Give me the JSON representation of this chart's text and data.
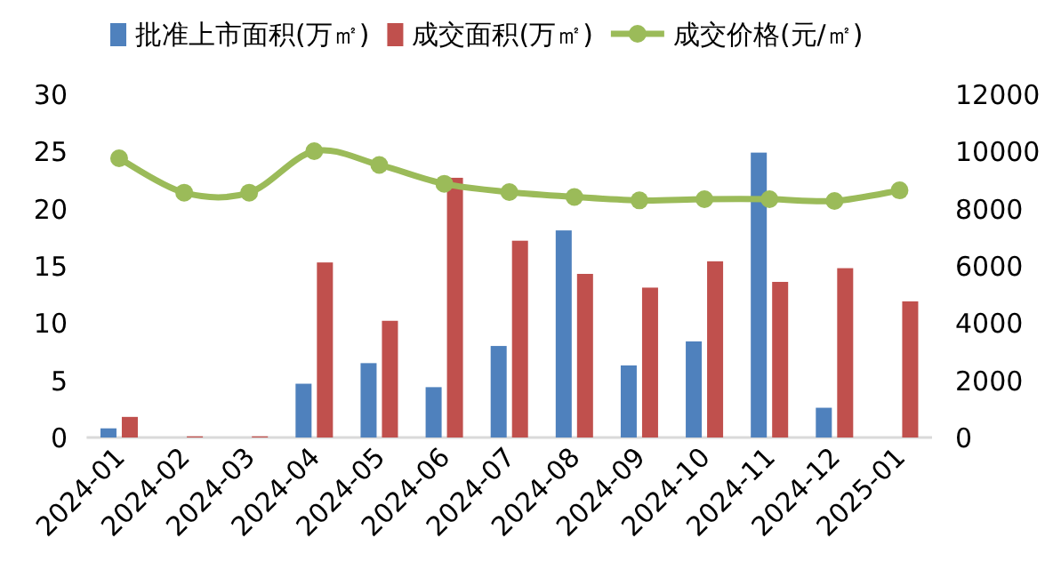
{
  "chart_data": {
    "type": "bar",
    "categories": [
      "2024-01",
      "2024-02",
      "2024-03",
      "2024-04",
      "2024-05",
      "2024-06",
      "2024-07",
      "2024-08",
      "2024-09",
      "2024-10",
      "2024-11",
      "2024-12",
      "2025-01"
    ],
    "series": [
      {
        "name": "批准上市面积(万㎡)",
        "color": "#4f81bd",
        "values": [
          0.8,
          0,
          0,
          4.7,
          6.5,
          4.4,
          8.0,
          18.1,
          6.3,
          8.4,
          24.9,
          2.6,
          null
        ]
      },
      {
        "name": "成交面积(万㎡)",
        "color": "#c0504d",
        "values": [
          1.8,
          0.1,
          0.1,
          15.3,
          10.2,
          22.7,
          17.2,
          14.3,
          13.1,
          15.4,
          13.6,
          14.8,
          11.9
        ]
      },
      {
        "name": "成交价格(元/㎡)",
        "type": "line",
        "axis": "y2",
        "color": "#9bbb59",
        "values": [
          9760,
          8560,
          8560,
          10010,
          9530,
          8870,
          8580,
          8410,
          8290,
          8330,
          8330,
          8270,
          8640
        ]
      }
    ],
    "ylim": [
      0,
      30
    ],
    "yticks": [
      0,
      5,
      10,
      15,
      20,
      25,
      30
    ],
    "y2lim": [
      0,
      12000
    ],
    "y2ticks": [
      0,
      2000,
      4000,
      6000,
      8000,
      10000,
      12000
    ],
    "legend": "top",
    "marker": "circle",
    "grid": false
  }
}
